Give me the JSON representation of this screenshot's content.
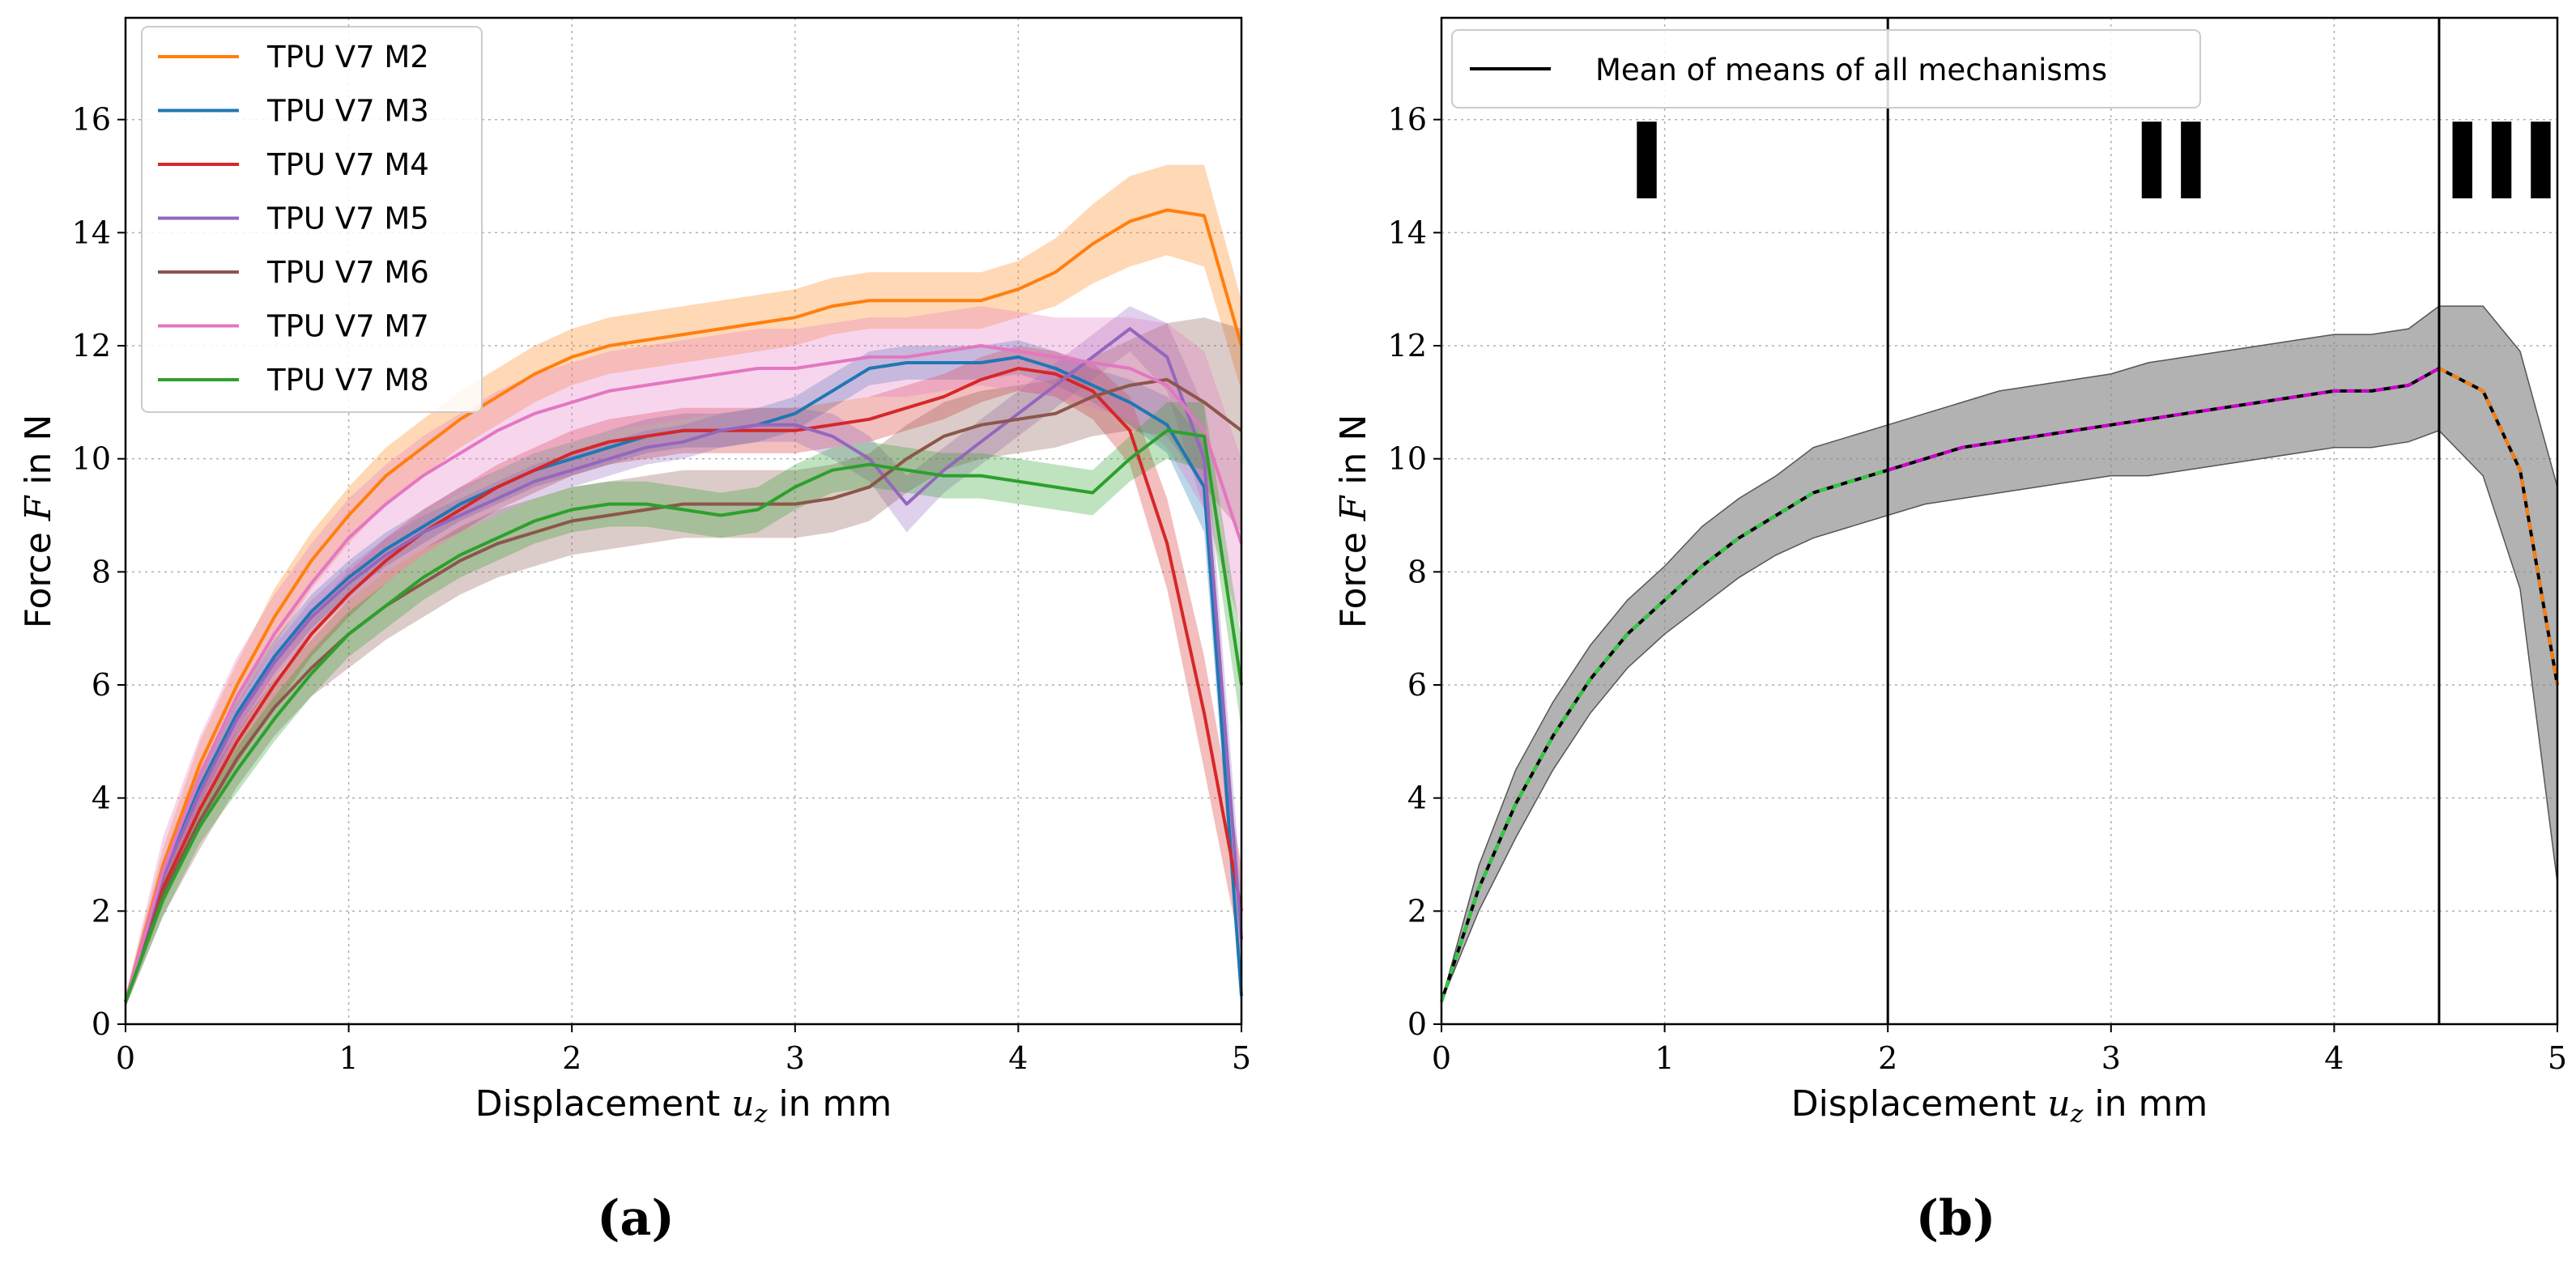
{
  "chart_data": [
    {
      "type": "line",
      "sublabel": "(a)",
      "xlabel": "Displacement u_z in mm",
      "ylabel": "Force F in N",
      "xlim": [
        0,
        5
      ],
      "ylim": [
        0,
        17.8
      ],
      "xticks": [
        0,
        1,
        2,
        3,
        4,
        5
      ],
      "yticks": [
        0,
        2,
        4,
        6,
        8,
        10,
        12,
        14,
        16
      ],
      "grid": true,
      "legend": "top-left",
      "x": [
        0,
        0.167,
        0.333,
        0.5,
        0.667,
        0.833,
        1.0,
        1.167,
        1.333,
        1.5,
        1.667,
        1.833,
        2.0,
        2.167,
        2.333,
        2.5,
        2.667,
        2.833,
        3.0,
        3.167,
        3.333,
        3.5,
        3.667,
        3.833,
        4.0,
        4.167,
        4.333,
        4.5,
        4.667,
        4.833,
        5.0
      ],
      "series": [
        {
          "name": "TPU V7 M2",
          "color": "#ff7f0e",
          "values": [
            0.4,
            2.8,
            4.6,
            6.0,
            7.2,
            8.2,
            9.0,
            9.7,
            10.2,
            10.7,
            11.1,
            11.5,
            11.8,
            12.0,
            12.1,
            12.2,
            12.3,
            12.4,
            12.5,
            12.7,
            12.8,
            12.8,
            12.8,
            12.8,
            13.0,
            13.3,
            13.8,
            14.2,
            14.4,
            14.3,
            12.0
          ],
          "spread": [
            0.1,
            0.3,
            0.4,
            0.4,
            0.5,
            0.5,
            0.5,
            0.5,
            0.5,
            0.5,
            0.5,
            0.5,
            0.5,
            0.5,
            0.5,
            0.5,
            0.5,
            0.5,
            0.5,
            0.5,
            0.5,
            0.5,
            0.5,
            0.5,
            0.5,
            0.6,
            0.7,
            0.8,
            0.8,
            0.9,
            0.8
          ]
        },
        {
          "name": "TPU V7 M3",
          "color": "#1f77b4",
          "values": [
            0.4,
            2.6,
            4.2,
            5.5,
            6.5,
            7.3,
            7.9,
            8.4,
            8.8,
            9.2,
            9.5,
            9.8,
            10.0,
            10.2,
            10.4,
            10.5,
            10.5,
            10.6,
            10.8,
            11.2,
            11.6,
            11.7,
            11.7,
            11.7,
            11.8,
            11.6,
            11.3,
            11.0,
            10.6,
            9.5,
            0.5
          ],
          "spread": [
            0.1,
            0.3,
            0.3,
            0.3,
            0.3,
            0.3,
            0.3,
            0.3,
            0.3,
            0.3,
            0.3,
            0.3,
            0.3,
            0.3,
            0.3,
            0.3,
            0.3,
            0.3,
            0.3,
            0.3,
            0.3,
            0.3,
            0.3,
            0.3,
            0.3,
            0.3,
            0.3,
            0.4,
            0.5,
            0.8,
            0.3
          ]
        },
        {
          "name": "TPU V7 M4",
          "color": "#d62728",
          "values": [
            0.4,
            2.4,
            3.8,
            5.0,
            6.0,
            6.9,
            7.6,
            8.2,
            8.7,
            9.1,
            9.5,
            9.8,
            10.1,
            10.3,
            10.4,
            10.5,
            10.5,
            10.5,
            10.5,
            10.6,
            10.7,
            10.9,
            11.1,
            11.4,
            11.6,
            11.5,
            11.2,
            10.5,
            8.5,
            5.5,
            2.0
          ],
          "spread": [
            0.1,
            0.3,
            0.3,
            0.4,
            0.4,
            0.4,
            0.4,
            0.4,
            0.4,
            0.4,
            0.4,
            0.4,
            0.4,
            0.4,
            0.4,
            0.4,
            0.4,
            0.4,
            0.4,
            0.4,
            0.4,
            0.4,
            0.4,
            0.4,
            0.4,
            0.4,
            0.5,
            0.6,
            0.8,
            1.0,
            0.8
          ]
        },
        {
          "name": "TPU V7 M5",
          "color": "#9467bd",
          "values": [
            0.4,
            2.6,
            4.1,
            5.4,
            6.4,
            7.2,
            7.8,
            8.3,
            8.7,
            9.0,
            9.3,
            9.6,
            9.8,
            10.0,
            10.2,
            10.3,
            10.5,
            10.6,
            10.6,
            10.4,
            10.0,
            9.2,
            9.8,
            10.3,
            10.8,
            11.3,
            11.8,
            12.3,
            11.8,
            10.0,
            1.5
          ],
          "spread": [
            0.1,
            0.3,
            0.3,
            0.3,
            0.3,
            0.3,
            0.3,
            0.3,
            0.3,
            0.3,
            0.3,
            0.3,
            0.3,
            0.3,
            0.3,
            0.3,
            0.3,
            0.3,
            0.3,
            0.4,
            0.4,
            0.5,
            0.4,
            0.4,
            0.4,
            0.4,
            0.4,
            0.4,
            0.6,
            0.9,
            0.8
          ]
        },
        {
          "name": "TPU V7 M6",
          "color": "#8c564b",
          "values": [
            0.4,
            2.3,
            3.6,
            4.7,
            5.6,
            6.3,
            6.9,
            7.4,
            7.8,
            8.2,
            8.5,
            8.7,
            8.9,
            9.0,
            9.1,
            9.2,
            9.2,
            9.2,
            9.2,
            9.3,
            9.5,
            10.0,
            10.4,
            10.6,
            10.7,
            10.8,
            11.1,
            11.3,
            11.4,
            11.0,
            10.5
          ],
          "spread": [
            0.1,
            0.4,
            0.5,
            0.5,
            0.5,
            0.5,
            0.6,
            0.6,
            0.6,
            0.6,
            0.6,
            0.6,
            0.6,
            0.6,
            0.6,
            0.6,
            0.6,
            0.6,
            0.6,
            0.6,
            0.6,
            0.6,
            0.6,
            0.6,
            0.6,
            0.6,
            0.7,
            0.8,
            1.0,
            1.5,
            1.8
          ]
        },
        {
          "name": "TPU V7 M7",
          "color": "#e377c2",
          "values": [
            0.4,
            2.7,
            4.4,
            5.8,
            6.9,
            7.8,
            8.6,
            9.2,
            9.7,
            10.1,
            10.5,
            10.8,
            11.0,
            11.2,
            11.3,
            11.4,
            11.5,
            11.6,
            11.6,
            11.7,
            11.8,
            11.8,
            11.9,
            12.0,
            11.9,
            11.8,
            11.7,
            11.6,
            11.3,
            10.5,
            8.5
          ],
          "spread": [
            0.1,
            0.6,
            0.7,
            0.7,
            0.7,
            0.7,
            0.7,
            0.7,
            0.7,
            0.7,
            0.7,
            0.7,
            0.7,
            0.7,
            0.7,
            0.7,
            0.7,
            0.7,
            0.7,
            0.7,
            0.7,
            0.7,
            0.7,
            0.7,
            0.7,
            0.7,
            0.8,
            0.9,
            1.1,
            1.4,
            1.5
          ]
        },
        {
          "name": "TPU V7 M8",
          "color": "#2ca02c",
          "values": [
            0.4,
            2.2,
            3.5,
            4.5,
            5.4,
            6.2,
            6.9,
            7.4,
            7.9,
            8.3,
            8.6,
            8.9,
            9.1,
            9.2,
            9.2,
            9.1,
            9.0,
            9.1,
            9.5,
            9.8,
            9.9,
            9.8,
            9.7,
            9.7,
            9.6,
            9.5,
            9.4,
            10.0,
            10.5,
            10.4,
            6.0
          ],
          "spread": [
            0.1,
            0.3,
            0.3,
            0.4,
            0.4,
            0.4,
            0.4,
            0.4,
            0.4,
            0.4,
            0.4,
            0.4,
            0.4,
            0.4,
            0.4,
            0.4,
            0.4,
            0.4,
            0.4,
            0.4,
            0.4,
            0.4,
            0.4,
            0.4,
            0.4,
            0.4,
            0.4,
            0.4,
            0.5,
            0.6,
            0.8
          ]
        }
      ]
    },
    {
      "type": "line",
      "sublabel": "(b)",
      "xlabel": "Displacement u_z in mm",
      "ylabel": "Force F in N",
      "xlim": [
        0,
        5
      ],
      "ylim": [
        0,
        17.8
      ],
      "xticks": [
        0,
        1,
        2,
        3,
        4,
        5
      ],
      "yticks": [
        0,
        2,
        4,
        6,
        8,
        10,
        12,
        14,
        16
      ],
      "grid": true,
      "legend": "top-left",
      "legend_entry": "Mean of means of all mechanisms",
      "vlines": [
        2.0,
        4.47
      ],
      "region_labels": [
        "I",
        "II",
        "III"
      ],
      "region_label_x": [
        0.92,
        3.27,
        4.75
      ],
      "x": [
        0,
        0.167,
        0.333,
        0.5,
        0.667,
        0.833,
        1.0,
        1.167,
        1.333,
        1.5,
        1.667,
        1.833,
        2.0,
        2.167,
        2.333,
        2.5,
        2.667,
        2.833,
        3.0,
        3.167,
        3.333,
        3.5,
        3.667,
        3.833,
        4.0,
        4.167,
        4.333,
        4.47,
        4.667,
        4.833,
        5.0
      ],
      "series": [
        {
          "name": "Mean of means of all mechanisms",
          "color": "#000000",
          "values": [
            0.4,
            2.4,
            3.9,
            5.1,
            6.1,
            6.9,
            7.5,
            8.1,
            8.6,
            9.0,
            9.4,
            9.6,
            9.8,
            10.0,
            10.2,
            10.3,
            10.4,
            10.5,
            10.6,
            10.7,
            10.8,
            10.9,
            11.0,
            11.1,
            11.2,
            11.2,
            11.3,
            11.6,
            11.2,
            9.8,
            6.0
          ],
          "lower": [
            0.4,
            2.0,
            3.3,
            4.5,
            5.5,
            6.3,
            6.9,
            7.4,
            7.9,
            8.3,
            8.6,
            8.8,
            9.0,
            9.2,
            9.3,
            9.4,
            9.5,
            9.6,
            9.7,
            9.7,
            9.8,
            9.9,
            10.0,
            10.1,
            10.2,
            10.2,
            10.3,
            10.5,
            9.7,
            7.7,
            2.5
          ],
          "upper": [
            0.4,
            2.8,
            4.5,
            5.7,
            6.7,
            7.5,
            8.1,
            8.8,
            9.3,
            9.7,
            10.2,
            10.4,
            10.6,
            10.8,
            11.0,
            11.2,
            11.3,
            11.4,
            11.5,
            11.7,
            11.8,
            11.9,
            12.0,
            12.1,
            12.2,
            12.2,
            12.3,
            12.7,
            12.7,
            11.9,
            9.5
          ]
        }
      ],
      "segments": [
        {
          "region": "I",
          "from": 0,
          "to": 2.0,
          "color": "#2ecc40"
        },
        {
          "region": "II",
          "from": 2.0,
          "to": 4.47,
          "color": "#cc00cc"
        },
        {
          "region": "III",
          "from": 4.47,
          "to": 5.0,
          "color": "#ff7f0e"
        }
      ]
    }
  ]
}
